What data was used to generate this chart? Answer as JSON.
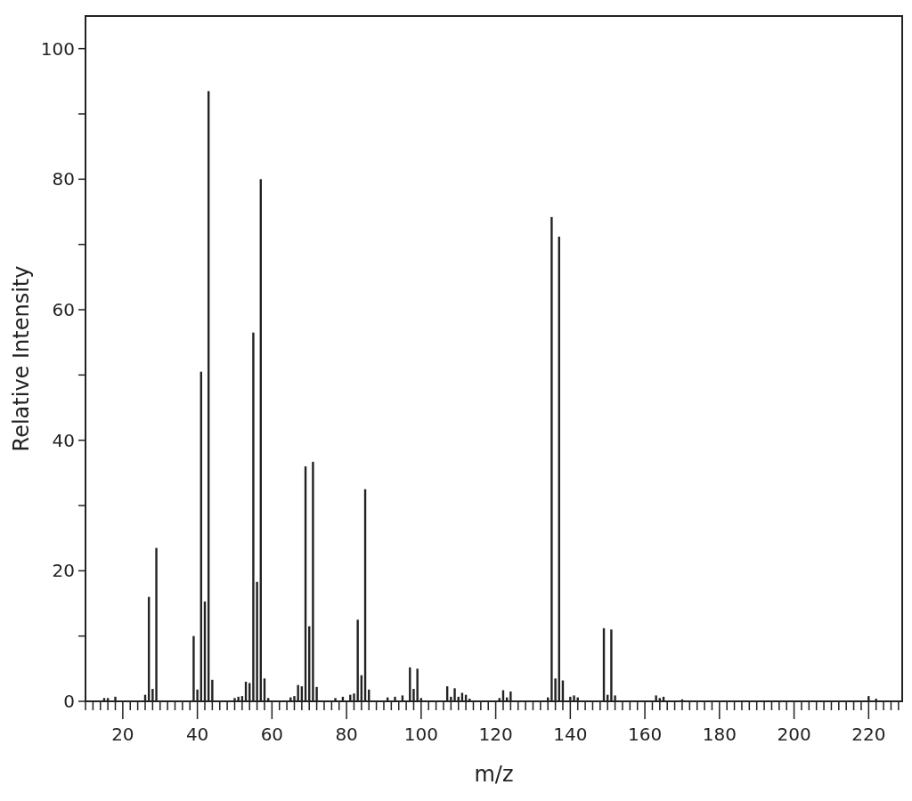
{
  "chart_data": {
    "type": "bar",
    "xlabel": "m/z",
    "ylabel": "Relative Intensity",
    "color": "#222222",
    "x": [
      15,
      16,
      18,
      26,
      27,
      28,
      29,
      39,
      40,
      41,
      42,
      43,
      44,
      50,
      51,
      52,
      53,
      54,
      55,
      56,
      57,
      58,
      59,
      65,
      66,
      67,
      68,
      69,
      70,
      71,
      72,
      77,
      79,
      81,
      82,
      83,
      84,
      85,
      86,
      91,
      93,
      95,
      97,
      98,
      99,
      100,
      107,
      108,
      109,
      110,
      111,
      112,
      113,
      121,
      122,
      123,
      124,
      134,
      135,
      136,
      137,
      138,
      140,
      141,
      142,
      149,
      150,
      151,
      152,
      163,
      164,
      165,
      170,
      220,
      222
    ],
    "values": [
      0.5,
      0.5,
      0.7,
      1,
      16,
      1.9,
      23.5,
      10,
      1.8,
      50.5,
      15.3,
      93.5,
      3.3,
      0.5,
      0.7,
      0.8,
      3,
      2.8,
      56.5,
      18.3,
      80,
      3.5,
      0.5,
      0.6,
      0.8,
      2.5,
      2.3,
      36,
      11.5,
      36.7,
      2.2,
      0.5,
      0.7,
      1,
      1.2,
      12.5,
      4,
      32.5,
      1.8,
      0.6,
      0.7,
      0.9,
      5.2,
      1.9,
      5,
      0.5,
      2.3,
      0.7,
      2,
      0.7,
      1.3,
      1,
      0.4,
      0.5,
      1.7,
      0.6,
      1.5,
      0.6,
      74.2,
      3.5,
      71.2,
      3.2,
      0.7,
      0.9,
      0.6,
      11.2,
      1,
      11,
      0.9,
      0.9,
      0.5,
      0.7,
      0.3,
      0.8,
      0.4
    ],
    "xlim": [
      10,
      229
    ],
    "ylim": [
      0,
      105
    ],
    "xticks": [
      {
        "value": 10,
        "label": null
      },
      {
        "value": 12,
        "label": null
      },
      {
        "value": 14,
        "label": null
      },
      {
        "value": 16,
        "label": null
      },
      {
        "value": 18,
        "label": null
      },
      20,
      {
        "value": 22,
        "label": null
      },
      {
        "value": 24,
        "label": null
      },
      {
        "value": 26,
        "label": null
      },
      {
        "value": 28,
        "label": null
      },
      {
        "value": 30,
        "label": null
      },
      {
        "value": 32,
        "label": null
      },
      {
        "value": 34,
        "label": null
      },
      {
        "value": 36,
        "label": null
      },
      {
        "value": 38,
        "label": null
      },
      40,
      {
        "value": 42,
        "label": null
      },
      {
        "value": 44,
        "label": null
      },
      {
        "value": 46,
        "label": null
      },
      {
        "value": 48,
        "label": null
      },
      {
        "value": 50,
        "label": null
      },
      {
        "value": 52,
        "label": null
      },
      {
        "value": 54,
        "label": null
      },
      {
        "value": 56,
        "label": null
      },
      {
        "value": 58,
        "label": null
      },
      60,
      {
        "value": 62,
        "label": null
      },
      {
        "value": 64,
        "label": null
      },
      {
        "value": 66,
        "label": null
      },
      {
        "value": 68,
        "label": null
      },
      {
        "value": 70,
        "label": null
      },
      {
        "value": 72,
        "label": null
      },
      {
        "value": 74,
        "label": null
      },
      {
        "value": 76,
        "label": null
      },
      {
        "value": 78,
        "label": null
      },
      80,
      {
        "value": 82,
        "label": null
      },
      {
        "value": 84,
        "label": null
      },
      {
        "value": 86,
        "label": null
      },
      {
        "value": 88,
        "label": null
      },
      {
        "value": 90,
        "label": null
      },
      {
        "value": 92,
        "label": null
      },
      {
        "value": 94,
        "label": null
      },
      {
        "value": 96,
        "label": null
      },
      {
        "value": 98,
        "label": null
      },
      100,
      {
        "value": 102,
        "label": null
      },
      {
        "value": 104,
        "label": null
      },
      {
        "value": 106,
        "label": null
      },
      {
        "value": 108,
        "label": null
      },
      {
        "value": 110,
        "label": null
      },
      {
        "value": 112,
        "label": null
      },
      {
        "value": 114,
        "label": null
      },
      {
        "value": 116,
        "label": null
      },
      {
        "value": 118,
        "label": null
      },
      120,
      {
        "value": 122,
        "label": null
      },
      {
        "value": 124,
        "label": null
      },
      {
        "value": 126,
        "label": null
      },
      {
        "value": 128,
        "label": null
      },
      {
        "value": 130,
        "label": null
      },
      {
        "value": 132,
        "label": null
      },
      {
        "value": 134,
        "label": null
      },
      {
        "value": 136,
        "label": null
      },
      {
        "value": 138,
        "label": null
      },
      140,
      {
        "value": 142,
        "label": null
      },
      {
        "value": 144,
        "label": null
      },
      {
        "value": 146,
        "label": null
      },
      {
        "value": 148,
        "label": null
      },
      {
        "value": 150,
        "label": null
      },
      {
        "value": 152,
        "label": null
      },
      {
        "value": 154,
        "label": null
      },
      {
        "value": 156,
        "label": null
      },
      {
        "value": 158,
        "label": null
      },
      160,
      {
        "value": 162,
        "label": null
      },
      {
        "value": 164,
        "label": null
      },
      {
        "value": 166,
        "label": null
      },
      {
        "value": 168,
        "label": null
      },
      {
        "value": 170,
        "label": null
      },
      {
        "value": 172,
        "label": null
      },
      {
        "value": 174,
        "label": null
      },
      {
        "value": 176,
        "label": null
      },
      {
        "value": 178,
        "label": null
      },
      180,
      {
        "value": 182,
        "label": null
      },
      {
        "value": 184,
        "label": null
      },
      {
        "value": 186,
        "label": null
      },
      {
        "value": 188,
        "label": null
      },
      {
        "value": 190,
        "label": null
      },
      {
        "value": 192,
        "label": null
      },
      {
        "value": 194,
        "label": null
      },
      {
        "value": 196,
        "label": null
      },
      {
        "value": 198,
        "label": null
      },
      200,
      {
        "value": 202,
        "label": null
      },
      {
        "value": 204,
        "label": null
      },
      {
        "value": 206,
        "label": null
      },
      {
        "value": 208,
        "label": null
      },
      {
        "value": 210,
        "label": null
      },
      {
        "value": 212,
        "label": null
      },
      {
        "value": 214,
        "label": null
      },
      {
        "value": 216,
        "label": null
      },
      {
        "value": 218,
        "label": null
      },
      220,
      {
        "value": 222,
        "label": null
      },
      {
        "value": 224,
        "label": null
      },
      {
        "value": 226,
        "label": null
      },
      {
        "value": 228,
        "label": null
      }
    ],
    "yticks": [
      0,
      {
        "value": 10,
        "label": null
      },
      20,
      {
        "value": 30,
        "label": null
      },
      40,
      {
        "value": 50,
        "label": null
      },
      60,
      {
        "value": 70,
        "label": null
      },
      80,
      {
        "value": 90,
        "label": null
      },
      100
    ]
  }
}
